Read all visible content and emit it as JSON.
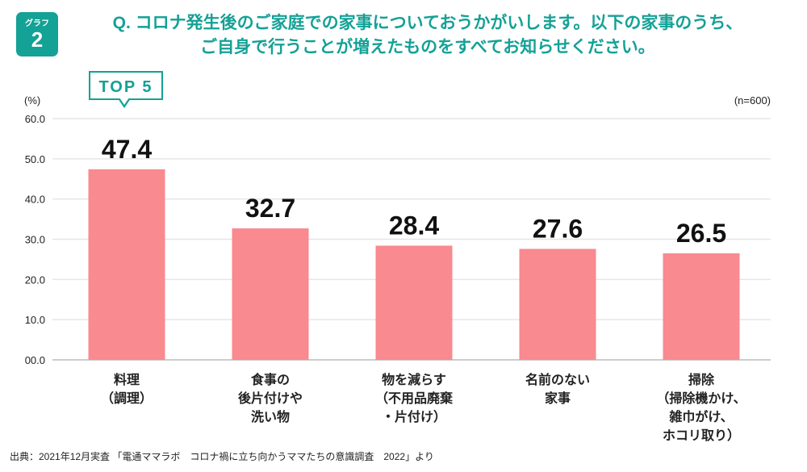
{
  "badge": {
    "label": "グラフ",
    "number": "2"
  },
  "title": [
    "Q. コロナ発生後のご家庭での家事についておうかがいします。以下の家事のうち、",
    "ご自身で行うことが増えたものをすべてお知らせください。"
  ],
  "top5_label": "TOP 5",
  "source": "出典：2021年12月実査 「電通ママラボ　コロナ禍に立ち向かうママたちの意識調査　2022」より",
  "colors": {
    "accent": "#14a196",
    "bar": "#f88a90",
    "grid": "#e6e6e6"
  },
  "chart_data": {
    "type": "bar",
    "title": "",
    "ylabel": "(%)",
    "note": "(n=600)",
    "ylim": [
      0,
      60
    ],
    "yticks": [
      "00.0",
      "10.0",
      "20.0",
      "30.0",
      "40.0",
      "50.0",
      "60.0"
    ],
    "grid": true,
    "categories": [
      "料理\n（調理）",
      "食事の\n後片付けや\n洗い物",
      "物を減らす\n（不用品廃棄\n・片付け）",
      "名前のない\n家事",
      "掃除\n（掃除機かけ、\n雑巾がけ、\nホコリ取り）"
    ],
    "values": [
      47.4,
      32.7,
      28.4,
      27.6,
      26.5
    ],
    "labels": [
      "47.4",
      "32.7",
      "28.4",
      "27.6",
      "26.5"
    ]
  }
}
